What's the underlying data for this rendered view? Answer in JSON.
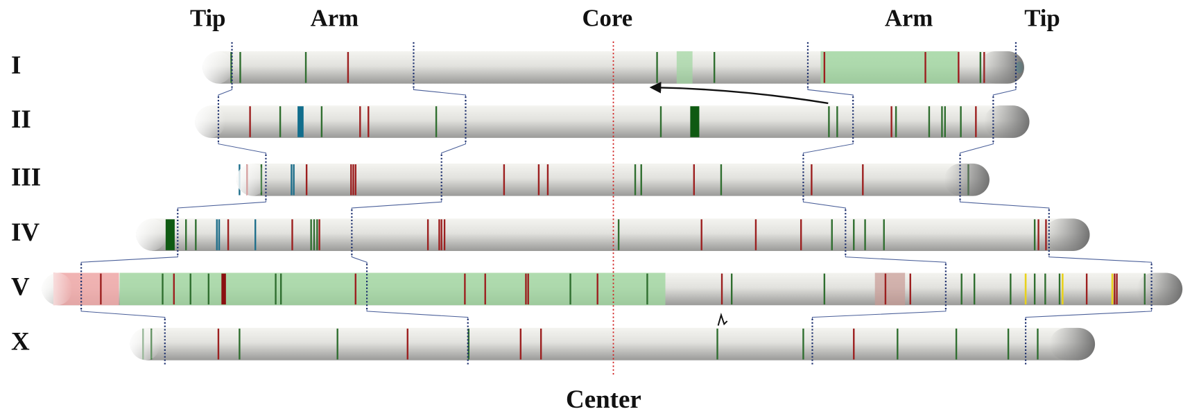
{
  "header": {
    "columns": [
      "Tip",
      "Arm",
      "Core",
      "Arm",
      "Tip"
    ]
  },
  "rows": [
    "I",
    "II",
    "III",
    "IV",
    "V",
    "X"
  ],
  "footer": {
    "label": "Center"
  }
}
